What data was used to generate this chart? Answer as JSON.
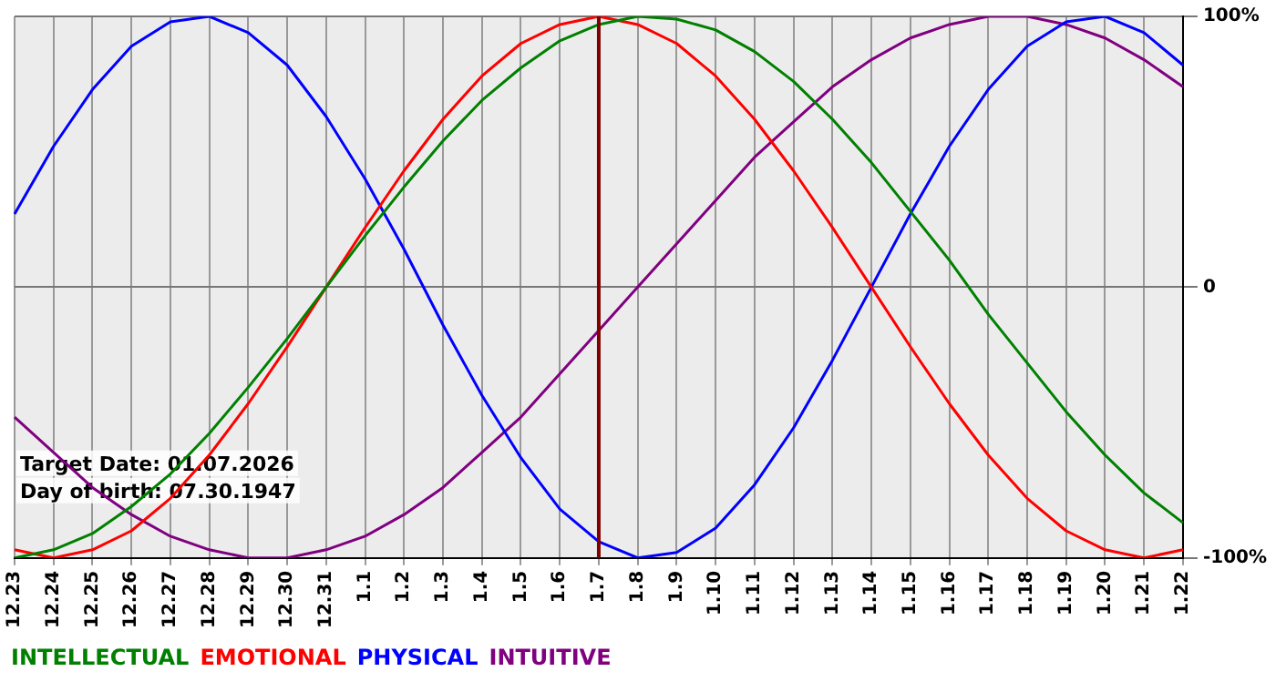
{
  "chart_data": {
    "type": "line",
    "categories": [
      "12.23",
      "12.24",
      "12.25",
      "12.26",
      "12.27",
      "12.28",
      "12.29",
      "12.30",
      "12.31",
      "1.1",
      "1.2",
      "1.3",
      "1.4",
      "1.5",
      "1.6",
      "1.7",
      "1.8",
      "1.9",
      "1.10",
      "1.11",
      "1.12",
      "1.13",
      "1.14",
      "1.15",
      "1.16",
      "1.17",
      "1.18",
      "1.19",
      "1.20",
      "1.21",
      "1.22"
    ],
    "series": [
      {
        "name": "INTELLECTUAL",
        "color": "#008000",
        "values": [
          -100,
          -97,
          -91,
          -81,
          -69,
          -54,
          -37,
          -19,
          0,
          19,
          37,
          54,
          69,
          81,
          91,
          97,
          100,
          99,
          95,
          87,
          76,
          62,
          46,
          28,
          10,
          -10,
          -28,
          -46,
          -62,
          -76,
          -87
        ]
      },
      {
        "name": "EMOTIONAL",
        "color": "#ff0000",
        "values": [
          -97,
          -100,
          -97,
          -90,
          -78,
          -62,
          -43,
          -22,
          0,
          22,
          43,
          62,
          78,
          90,
          97,
          100,
          97,
          90,
          78,
          62,
          43,
          22,
          0,
          -22,
          -43,
          -62,
          -78,
          -90,
          -97,
          -100,
          -97
        ]
      },
      {
        "name": "PHYSICAL",
        "color": "#0000ff",
        "values": [
          27,
          52,
          73,
          89,
          98,
          100,
          94,
          82,
          63,
          40,
          14,
          -14,
          -40,
          -63,
          -82,
          -94,
          -100,
          -98,
          -89,
          -73,
          -52,
          -27,
          0,
          27,
          52,
          73,
          89,
          98,
          100,
          94,
          82
        ]
      },
      {
        "name": "INTUITIVE",
        "color": "#800080",
        "values": [
          -48,
          -61,
          -74,
          -84,
          -92,
          -97,
          -100,
          -100,
          -97,
          -92,
          -84,
          -74,
          -61,
          -48,
          -32,
          -16,
          0,
          16,
          32,
          48,
          61,
          74,
          84,
          92,
          97,
          100,
          100,
          97,
          92,
          84,
          74
        ]
      }
    ],
    "ylim": [
      -100,
      100
    ],
    "yticks": [
      {
        "value": -100,
        "label": "-100%"
      },
      0,
      {
        "value": 100,
        "label": "100%"
      }
    ],
    "ref_lines": [
      {
        "axis": "x",
        "value": "1.7",
        "color": "#800000"
      }
    ],
    "annotations": [
      "Target Date: 01.07.2026",
      "Day of birth: 07.30.1947"
    ],
    "grid": true,
    "legend": "bottom",
    "marker": "none",
    "line_style": "solid"
  }
}
